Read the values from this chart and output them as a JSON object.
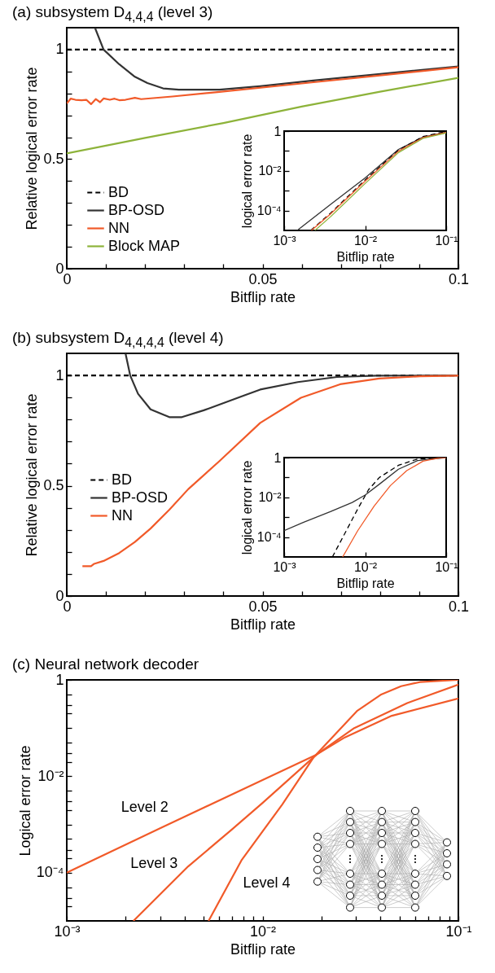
{
  "chart_data": [
    {
      "type": "line",
      "title": "(a) subsystem D$_{4,4,4}$ (level 3)",
      "xlabel": "Bitflip rate",
      "ylabel": "Relative logical error rate",
      "xlim": [
        0,
        0.1
      ],
      "ylim": [
        0,
        1.1
      ],
      "xticks": [
        0,
        {
          "value": 0.01,
          "label": null
        },
        {
          "value": 0.02,
          "label": null
        },
        {
          "value": 0.03,
          "label": null
        },
        {
          "value": 0.04,
          "label": null
        },
        0.05,
        {
          "value": 0.06,
          "label": null
        },
        {
          "value": 0.07,
          "label": null
        },
        {
          "value": 0.08,
          "label": null
        },
        {
          "value": 0.09,
          "label": null
        },
        0.1
      ],
      "yticks": [
        0,
        {
          "value": 0.1,
          "label": null
        },
        {
          "value": 0.2,
          "label": null
        },
        {
          "value": 0.3,
          "label": null
        },
        {
          "value": 0.4,
          "label": null
        },
        0.5,
        {
          "value": 0.6,
          "label": null
        },
        {
          "value": 0.7,
          "label": null
        },
        {
          "value": 0.8,
          "label": null
        },
        {
          "value": 0.9,
          "label": null
        },
        1
      ],
      "legend": "bottom left",
      "series": [
        {
          "name": "BD",
          "color": "#000000",
          "line_style": "dashed",
          "x": [
            0,
            0.1
          ],
          "values": [
            1,
            1
          ]
        },
        {
          "name": "BP-OSD",
          "color": "#333333",
          "line_style": "solid",
          "x": [
            0.0072,
            0.0094,
            0.0134,
            0.0174,
            0.0206,
            0.0246,
            0.0286,
            0.039,
            0.0494,
            0.063,
            0.079,
            0.1
          ],
          "values": [
            1.1,
            1.0,
            0.933,
            0.876,
            0.847,
            0.823,
            0.817,
            0.817,
            0.833,
            0.859,
            0.887,
            0.923
          ]
        },
        {
          "name": "NN",
          "color": "#f15a29",
          "line_style": "solid",
          "x": [
            0,
            0.001,
            0.0022,
            0.0038,
            0.005,
            0.0062,
            0.0074,
            0.0085,
            0.0094,
            0.011,
            0.0122,
            0.0134,
            0.015,
            0.0174,
            0.019,
            0.027,
            0.039,
            0.063,
            0.079,
            0.1
          ],
          "values": [
            0.754,
            0.776,
            0.771,
            0.769,
            0.771,
            0.751,
            0.774,
            0.76,
            0.777,
            0.771,
            0.776,
            0.769,
            0.771,
            0.78,
            0.774,
            0.786,
            0.807,
            0.851,
            0.88,
            0.919
          ]
        },
        {
          "name": "Block MAP",
          "color": "#8db33a",
          "line_style": "solid",
          "x": [
            0,
            0.02,
            0.04,
            0.06,
            0.08,
            0.1
          ],
          "values": [
            0.526,
            0.597,
            0.665,
            0.74,
            0.808,
            0.871
          ]
        }
      ]
    },
    {
      "type": "line",
      "xlabel": "Bitflip rate",
      "ylabel": "logical error rate",
      "log": "xy",
      "xlim": [
        0.001,
        0.1
      ],
      "ylim": [
        1e-05,
        1
      ],
      "xticks": [
        {
          "value": 0.001,
          "label": "10⁻³"
        },
        {
          "value": 0.01,
          "label": "10⁻²"
        },
        {
          "value": 0.1,
          "label": "10⁻¹"
        }
      ],
      "yticks": [
        {
          "value": 0.0001,
          "label": "10⁻⁴"
        },
        {
          "value": 0.001,
          "label": null
        },
        {
          "value": 0.01,
          "label": "10⁻²"
        },
        {
          "value": 0.1,
          "label": null
        },
        1
      ],
      "series": [
        {
          "color": "#333333",
          "line_style": "solid",
          "x": [
            0.00145,
            0.00372,
            0.01,
            0.0258,
            0.0518,
            0.1
          ],
          "values": [
            1e-05,
            0.0002,
            0.0044,
            0.12,
            0.5,
            0.88
          ]
        },
        {
          "color": "#000000",
          "line_style": "dashed",
          "x": [
            0.00213,
            0.00372,
            0.01,
            0.0258,
            0.0518,
            0.1
          ],
          "values": [
            1e-05,
            7.3e-05,
            0.0035,
            0.11,
            0.53,
            0.97
          ]
        },
        {
          "color": "#f15a29",
          "line_style": "solid",
          "x": [
            0.00217,
            0.00372,
            0.01,
            0.0258,
            0.0518,
            0.1
          ],
          "values": [
            1e-05,
            6.6e-05,
            0.003,
            0.098,
            0.47,
            0.85
          ]
        },
        {
          "color": "#8db33a",
          "line_style": "solid",
          "x": [
            0.0024,
            0.00372,
            0.01,
            0.0258,
            0.0518,
            0.1
          ],
          "values": [
            1e-05,
            4.8e-05,
            0.0023,
            0.083,
            0.43,
            0.8
          ]
        }
      ]
    },
    {
      "type": "line",
      "title": "(b) subsystem D$_{4,4,4,4}$ (level 4)",
      "xlabel": "Bitflip rate",
      "ylabel": "Relative logical error rate",
      "xlim": [
        0,
        0.1
      ],
      "ylim": [
        0,
        1.1
      ],
      "xticks": [
        0,
        {
          "value": 0.01,
          "label": null
        },
        {
          "value": 0.02,
          "label": null
        },
        {
          "value": 0.03,
          "label": null
        },
        {
          "value": 0.04,
          "label": null
        },
        0.05,
        {
          "value": 0.06,
          "label": null
        },
        {
          "value": 0.07,
          "label": null
        },
        {
          "value": 0.08,
          "label": null
        },
        {
          "value": 0.09,
          "label": null
        },
        0.1
      ],
      "yticks": [
        0,
        {
          "value": 0.1,
          "label": null
        },
        {
          "value": 0.2,
          "label": null
        },
        {
          "value": 0.3,
          "label": null
        },
        {
          "value": 0.4,
          "label": null
        },
        0.5,
        {
          "value": 0.6,
          "label": null
        },
        {
          "value": 0.7,
          "label": null
        },
        {
          "value": 0.8,
          "label": null
        },
        {
          "value": 0.9,
          "label": null
        },
        1
      ],
      "legend": "bottom left",
      "series": [
        {
          "name": "BD",
          "color": "#000000",
          "line_style": "dashed",
          "x": [
            0,
            0.1
          ],
          "values": [
            1,
            1
          ]
        },
        {
          "name": "BP-OSD",
          "color": "#333333",
          "line_style": "solid",
          "x": [
            0.015,
            0.0162,
            0.0182,
            0.0214,
            0.0262,
            0.0294,
            0.035,
            0.0454,
            0.0494,
            0.059,
            0.069,
            0.079,
            0.1
          ],
          "values": [
            1.1,
            1.0,
            0.917,
            0.846,
            0.811,
            0.811,
            0.842,
            0.91,
            0.936,
            0.97,
            0.993,
            0.999,
            1.0
          ]
        },
        {
          "name": "NN",
          "color": "#f15a29",
          "line_style": "solid",
          "x": [
            0.004,
            0.0062,
            0.007,
            0.0094,
            0.0134,
            0.0174,
            0.0214,
            0.0262,
            0.031,
            0.039,
            0.0494,
            0.0598,
            0.0698,
            0.0798,
            0.0902,
            0.1
          ],
          "values": [
            0.135,
            0.135,
            0.146,
            0.159,
            0.195,
            0.245,
            0.306,
            0.391,
            0.484,
            0.612,
            0.785,
            0.899,
            0.96,
            0.986,
            0.996,
            0.999
          ]
        }
      ]
    },
    {
      "type": "line",
      "xlabel": "Bitflip rate",
      "ylabel": "logical error rate",
      "log": "xy",
      "xlim": [
        0.001,
        0.1
      ],
      "ylim": [
        1e-05,
        1
      ],
      "xticks": [
        {
          "value": 0.001,
          "label": "10⁻³"
        },
        {
          "value": 0.01,
          "label": "10⁻²"
        },
        {
          "value": 0.1,
          "label": "10⁻¹"
        }
      ],
      "yticks": [
        {
          "value": 0.0001,
          "label": "10⁻⁴"
        },
        {
          "value": 0.001,
          "label": null
        },
        {
          "value": 0.01,
          "label": "10⁻²"
        },
        {
          "value": 0.1,
          "label": null
        },
        1
      ],
      "series": [
        {
          "color": "#333333",
          "line_style": "solid",
          "x": [
            0.001,
            0.00172,
            0.00372,
            0.00692,
            0.01,
            0.015,
            0.0258,
            0.0444,
            0.1
          ],
          "values": [
            0.00021,
            0.00055,
            0.0019,
            0.0055,
            0.013,
            0.046,
            0.26,
            0.71,
            1
          ]
        },
        {
          "color": "#000000",
          "line_style": "dashed",
          "x": [
            0.00394,
            0.0055,
            0.0081,
            0.011,
            0.015,
            0.0258,
            0.0444,
            0.1
          ],
          "values": [
            1e-05,
            0.00013,
            0.0026,
            0.024,
            0.1,
            0.41,
            0.85,
            1
          ]
        },
        {
          "color": "#f15a29",
          "line_style": "solid",
          "x": [
            0.00528,
            0.0081,
            0.0129,
            0.0205,
            0.0326,
            0.0518,
            0.0824,
            0.1
          ],
          "values": [
            1e-05,
            0.00021,
            0.0036,
            0.039,
            0.22,
            0.66,
            0.97,
            1
          ]
        }
      ]
    },
    {
      "type": "line",
      "title": "(c) Neural network decoder",
      "xlabel": "Bitflip rate",
      "ylabel": "Logical error rate",
      "log": "xy",
      "xlim": [
        0.001,
        0.1
      ],
      "ylim": [
        1e-05,
        1
      ],
      "xticks": [
        {
          "value": 0.001,
          "label": "10⁻³"
        },
        {
          "value": 0.002,
          "label": null
        },
        {
          "value": 0.003,
          "label": null
        },
        {
          "value": 0.004,
          "label": null
        },
        {
          "value": 0.005,
          "label": null
        },
        {
          "value": 0.006,
          "label": null
        },
        {
          "value": 0.007,
          "label": null
        },
        {
          "value": 0.008,
          "label": null
        },
        {
          "value": 0.009,
          "label": null
        },
        {
          "value": 0.01,
          "label": "10⁻²"
        },
        {
          "value": 0.02,
          "label": null
        },
        {
          "value": 0.03,
          "label": null
        },
        {
          "value": 0.04,
          "label": null
        },
        {
          "value": 0.05,
          "label": null
        },
        {
          "value": 0.06,
          "label": null
        },
        {
          "value": 0.07,
          "label": null
        },
        {
          "value": 0.08,
          "label": null
        },
        {
          "value": 0.09,
          "label": null
        },
        {
          "value": 0.1,
          "label": "10⁻¹"
        }
      ],
      "yticks": [
        {
          "value": 2e-05,
          "label": null
        },
        {
          "value": 3e-05,
          "label": null
        },
        {
          "value": 5e-05,
          "label": null
        },
        {
          "value": 0.0001,
          "label": "10⁻⁴"
        },
        {
          "value": 0.0002,
          "label": null
        },
        {
          "value": 0.0003,
          "label": null
        },
        {
          "value": 0.0005,
          "label": null
        },
        {
          "value": 0.001,
          "label": null
        },
        {
          "value": 0.002,
          "label": null
        },
        {
          "value": 0.003,
          "label": null
        },
        {
          "value": 0.005,
          "label": null
        },
        {
          "value": 0.01,
          "label": "10⁻²"
        },
        {
          "value": 0.02,
          "label": null
        },
        {
          "value": 0.03,
          "label": null
        },
        {
          "value": 0.05,
          "label": null
        },
        {
          "value": 0.1,
          "label": null
        },
        {
          "value": 0.2,
          "label": null
        },
        {
          "value": 0.3,
          "label": null
        },
        {
          "value": 0.5,
          "label": null
        },
        1
      ],
      "series": [
        {
          "name": "Level 2",
          "color": "#f15a29",
          "x": [
            0.001,
            0.0025,
            0.01,
            0.0189,
            0.0263,
            0.0457,
            0.1
          ],
          "values": [
            0.0001,
            0.00059,
            0.0084,
            0.0283,
            0.064,
            0.18,
            0.41
          ]
        },
        {
          "name": "Level 3",
          "color": "#f15a29",
          "x": [
            0.00219,
            0.00417,
            0.00698,
            0.01,
            0.0189,
            0.0294,
            0.0548,
            0.1
          ],
          "values": [
            1e-05,
            0.000135,
            0.00079,
            0.0028,
            0.0283,
            0.1,
            0.33,
            0.8
          ]
        },
        {
          "name": "Level 4",
          "color": "#f15a29",
          "x": [
            0.0053,
            0.0078,
            0.0126,
            0.0182,
            0.0305,
            0.0401,
            0.051,
            0.0636,
            0.1
          ],
          "values": [
            1e-05,
            0.00018,
            0.0026,
            0.0245,
            0.23,
            0.49,
            0.74,
            0.9,
            1
          ]
        }
      ]
    }
  ]
}
